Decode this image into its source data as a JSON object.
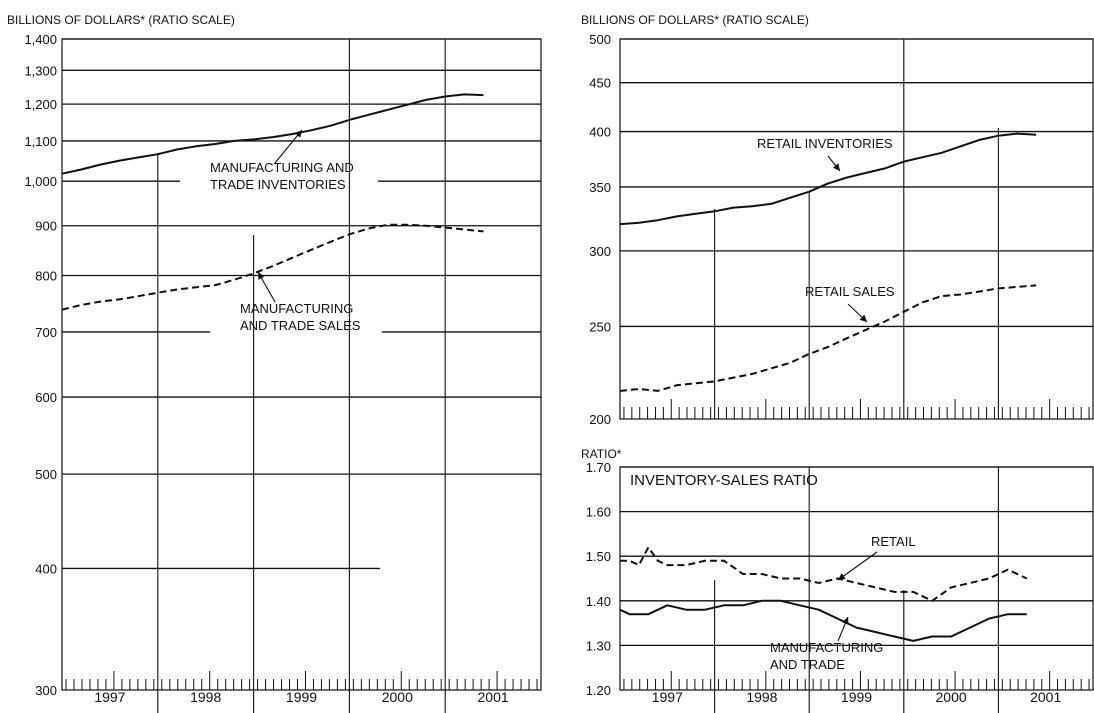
{
  "chart_data": [
    {
      "type": "line",
      "id": "left",
      "title": "",
      "ylabel": "BILLIONS OF DOLLARS* (RATIO SCALE)",
      "scale": "log",
      "ylim": [
        300,
        1400
      ],
      "xlim": [
        1996.5,
        2001.5
      ],
      "yticks": [
        300,
        400,
        500,
        600,
        700,
        800,
        900,
        1000,
        1100,
        1200,
        1300,
        1400
      ],
      "ytick_labels": [
        "300",
        "400",
        "500",
        "600",
        "700",
        "800",
        "900",
        "1,000",
        "1,100",
        "1,200",
        "1,300",
        "1,400"
      ],
      "x_labels": [
        "1997",
        "1998",
        "1999",
        "2000",
        "2001"
      ],
      "series": [
        {
          "name": "MANUFACTURING AND TRADE INVENTORIES",
          "style": "solid",
          "x": [
            1996.5,
            1996.7,
            1996.9,
            1997.1,
            1997.3,
            1997.5,
            1997.7,
            1997.9,
            1998.1,
            1998.3,
            1998.5,
            1998.7,
            1998.9,
            1999.1,
            1999.3,
            1999.5,
            1999.7,
            1999.9,
            2000.1,
            2000.3,
            2000.5,
            2000.7,
            2000.9
          ],
          "values": [
            1018,
            1028,
            1040,
            1050,
            1058,
            1066,
            1078,
            1086,
            1092,
            1100,
            1104,
            1110,
            1118,
            1128,
            1140,
            1156,
            1170,
            1184,
            1198,
            1212,
            1222,
            1228,
            1226
          ]
        },
        {
          "name": "MANUFACTURING AND TRADE SALES",
          "style": "dashed",
          "x": [
            1996.5,
            1996.7,
            1996.9,
            1997.1,
            1997.3,
            1997.5,
            1997.7,
            1997.9,
            1998.1,
            1998.3,
            1998.5,
            1998.7,
            1998.9,
            1999.1,
            1999.3,
            1999.5,
            1999.7,
            1999.9,
            2000.1,
            2000.3,
            2000.5,
            2000.7,
            2000.9
          ],
          "values": [
            738,
            746,
            752,
            756,
            762,
            768,
            774,
            778,
            782,
            792,
            804,
            818,
            834,
            850,
            866,
            882,
            894,
            902,
            902,
            900,
            896,
            892,
            888
          ]
        }
      ],
      "annotations": [
        "MANUFACTURING AND",
        "TRADE INVENTORIES",
        "MANUFACTURING",
        "AND TRADE SALES"
      ]
    },
    {
      "type": "line",
      "id": "right-top",
      "title": "",
      "ylabel": "BILLIONS OF DOLLARS* (RATIO SCALE)",
      "scale": "log",
      "ylim": [
        200,
        500
      ],
      "xlim": [
        1996.5,
        2001.5
      ],
      "yticks": [
        200,
        250,
        300,
        350,
        400,
        450,
        500
      ],
      "ytick_labels": [
        "200",
        "250",
        "300",
        "350",
        "400",
        "450",
        "500"
      ],
      "series": [
        {
          "name": "RETAIL INVENTORIES",
          "style": "solid",
          "x": [
            1996.5,
            1996.7,
            1996.9,
            1997.1,
            1997.3,
            1997.5,
            1997.7,
            1997.9,
            1998.1,
            1998.3,
            1998.5,
            1998.7,
            1998.9,
            1999.1,
            1999.3,
            1999.5,
            1999.7,
            1999.9,
            2000.1,
            2000.3,
            2000.5,
            2000.7,
            2000.9
          ],
          "values": [
            320,
            321,
            323,
            326,
            328,
            330,
            333,
            334,
            336,
            341,
            346,
            353,
            358,
            362,
            366,
            372,
            376,
            380,
            386,
            392,
            396,
            398,
            397
          ]
        },
        {
          "name": "RETAIL SALES",
          "style": "dashed",
          "x": [
            1996.5,
            1996.7,
            1996.9,
            1997.1,
            1997.3,
            1997.5,
            1997.7,
            1997.9,
            1998.1,
            1998.3,
            1998.5,
            1998.7,
            1998.9,
            1999.1,
            1999.3,
            1999.5,
            1999.7,
            1999.9,
            2000.1,
            2000.3,
            2000.5,
            2000.7,
            2000.9
          ],
          "values": [
            214,
            215,
            214,
            217,
            218,
            219,
            221,
            223,
            226,
            229,
            234,
            238,
            243,
            248,
            253,
            259,
            265,
            269,
            270,
            272,
            274,
            275,
            276
          ]
        }
      ],
      "annotations": [
        "RETAIL INVENTORIES",
        "RETAIL SALES"
      ]
    },
    {
      "type": "line",
      "id": "right-bottom",
      "title": "INVENTORY-SALES RATIO",
      "ylabel": "RATIO*",
      "scale": "linear",
      "ylim": [
        1.2,
        1.7
      ],
      "xlim": [
        1996.5,
        2001.5
      ],
      "yticks": [
        1.2,
        1.3,
        1.4,
        1.5,
        1.6,
        1.7
      ],
      "ytick_labels": [
        "1.20",
        "1.30",
        "1.40",
        "1.50",
        "1.60",
        "1.70"
      ],
      "x_labels": [
        "1997",
        "1998",
        "1999",
        "2000",
        "2001"
      ],
      "series": [
        {
          "name": "RETAIL",
          "style": "dashed",
          "x": [
            1996.5,
            1996.6,
            1996.7,
            1996.8,
            1996.9,
            1997.0,
            1997.2,
            1997.4,
            1997.6,
            1997.8,
            1998.0,
            1998.2,
            1998.4,
            1998.6,
            1998.8,
            1999.0,
            1999.2,
            1999.4,
            1999.6,
            1999.8,
            2000.0,
            2000.2,
            2000.4,
            2000.6,
            2000.8
          ],
          "values": [
            1.49,
            1.49,
            1.48,
            1.52,
            1.49,
            1.48,
            1.48,
            1.49,
            1.49,
            1.46,
            1.46,
            1.45,
            1.45,
            1.44,
            1.45,
            1.44,
            1.43,
            1.42,
            1.42,
            1.4,
            1.43,
            1.44,
            1.45,
            1.47,
            1.45
          ]
        },
        {
          "name": "MANUFACTURING AND TRADE",
          "style": "solid",
          "x": [
            1996.5,
            1996.6,
            1996.8,
            1997.0,
            1997.2,
            1997.4,
            1997.6,
            1997.8,
            1998.0,
            1998.2,
            1998.4,
            1998.6,
            1998.8,
            1999.0,
            1999.2,
            1999.4,
            1999.6,
            1999.8,
            2000.0,
            2000.2,
            2000.4,
            2000.6,
            2000.8
          ],
          "values": [
            1.38,
            1.37,
            1.37,
            1.39,
            1.38,
            1.38,
            1.39,
            1.39,
            1.4,
            1.4,
            1.39,
            1.38,
            1.36,
            1.34,
            1.33,
            1.32,
            1.31,
            1.32,
            1.32,
            1.34,
            1.36,
            1.37,
            1.37
          ]
        }
      ],
      "annotations": [
        "RETAIL",
        "MANUFACTURING",
        "AND TRADE"
      ]
    }
  ]
}
